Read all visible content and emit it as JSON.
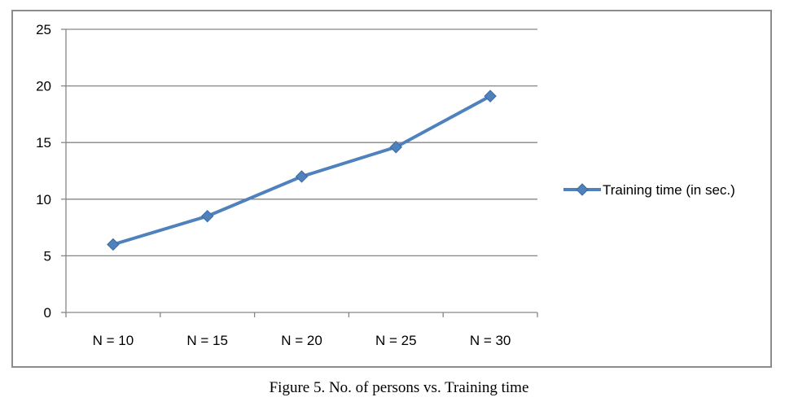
{
  "caption": "Figure 5. No. of persons vs. Training time",
  "chart_data": {
    "type": "line",
    "categories": [
      "N = 10",
      "N = 15",
      "N = 20",
      "N = 25",
      "N = 30"
    ],
    "series": [
      {
        "name": "Training time (in sec.)",
        "values": [
          6.0,
          8.5,
          12.0,
          14.6,
          19.1
        ],
        "color": "#4f81bd"
      }
    ],
    "ylim": [
      0,
      25
    ],
    "yticks": [
      0,
      5,
      10,
      15,
      20,
      25
    ],
    "grid": true,
    "legend": "right",
    "gridline_color": "#868686"
  }
}
